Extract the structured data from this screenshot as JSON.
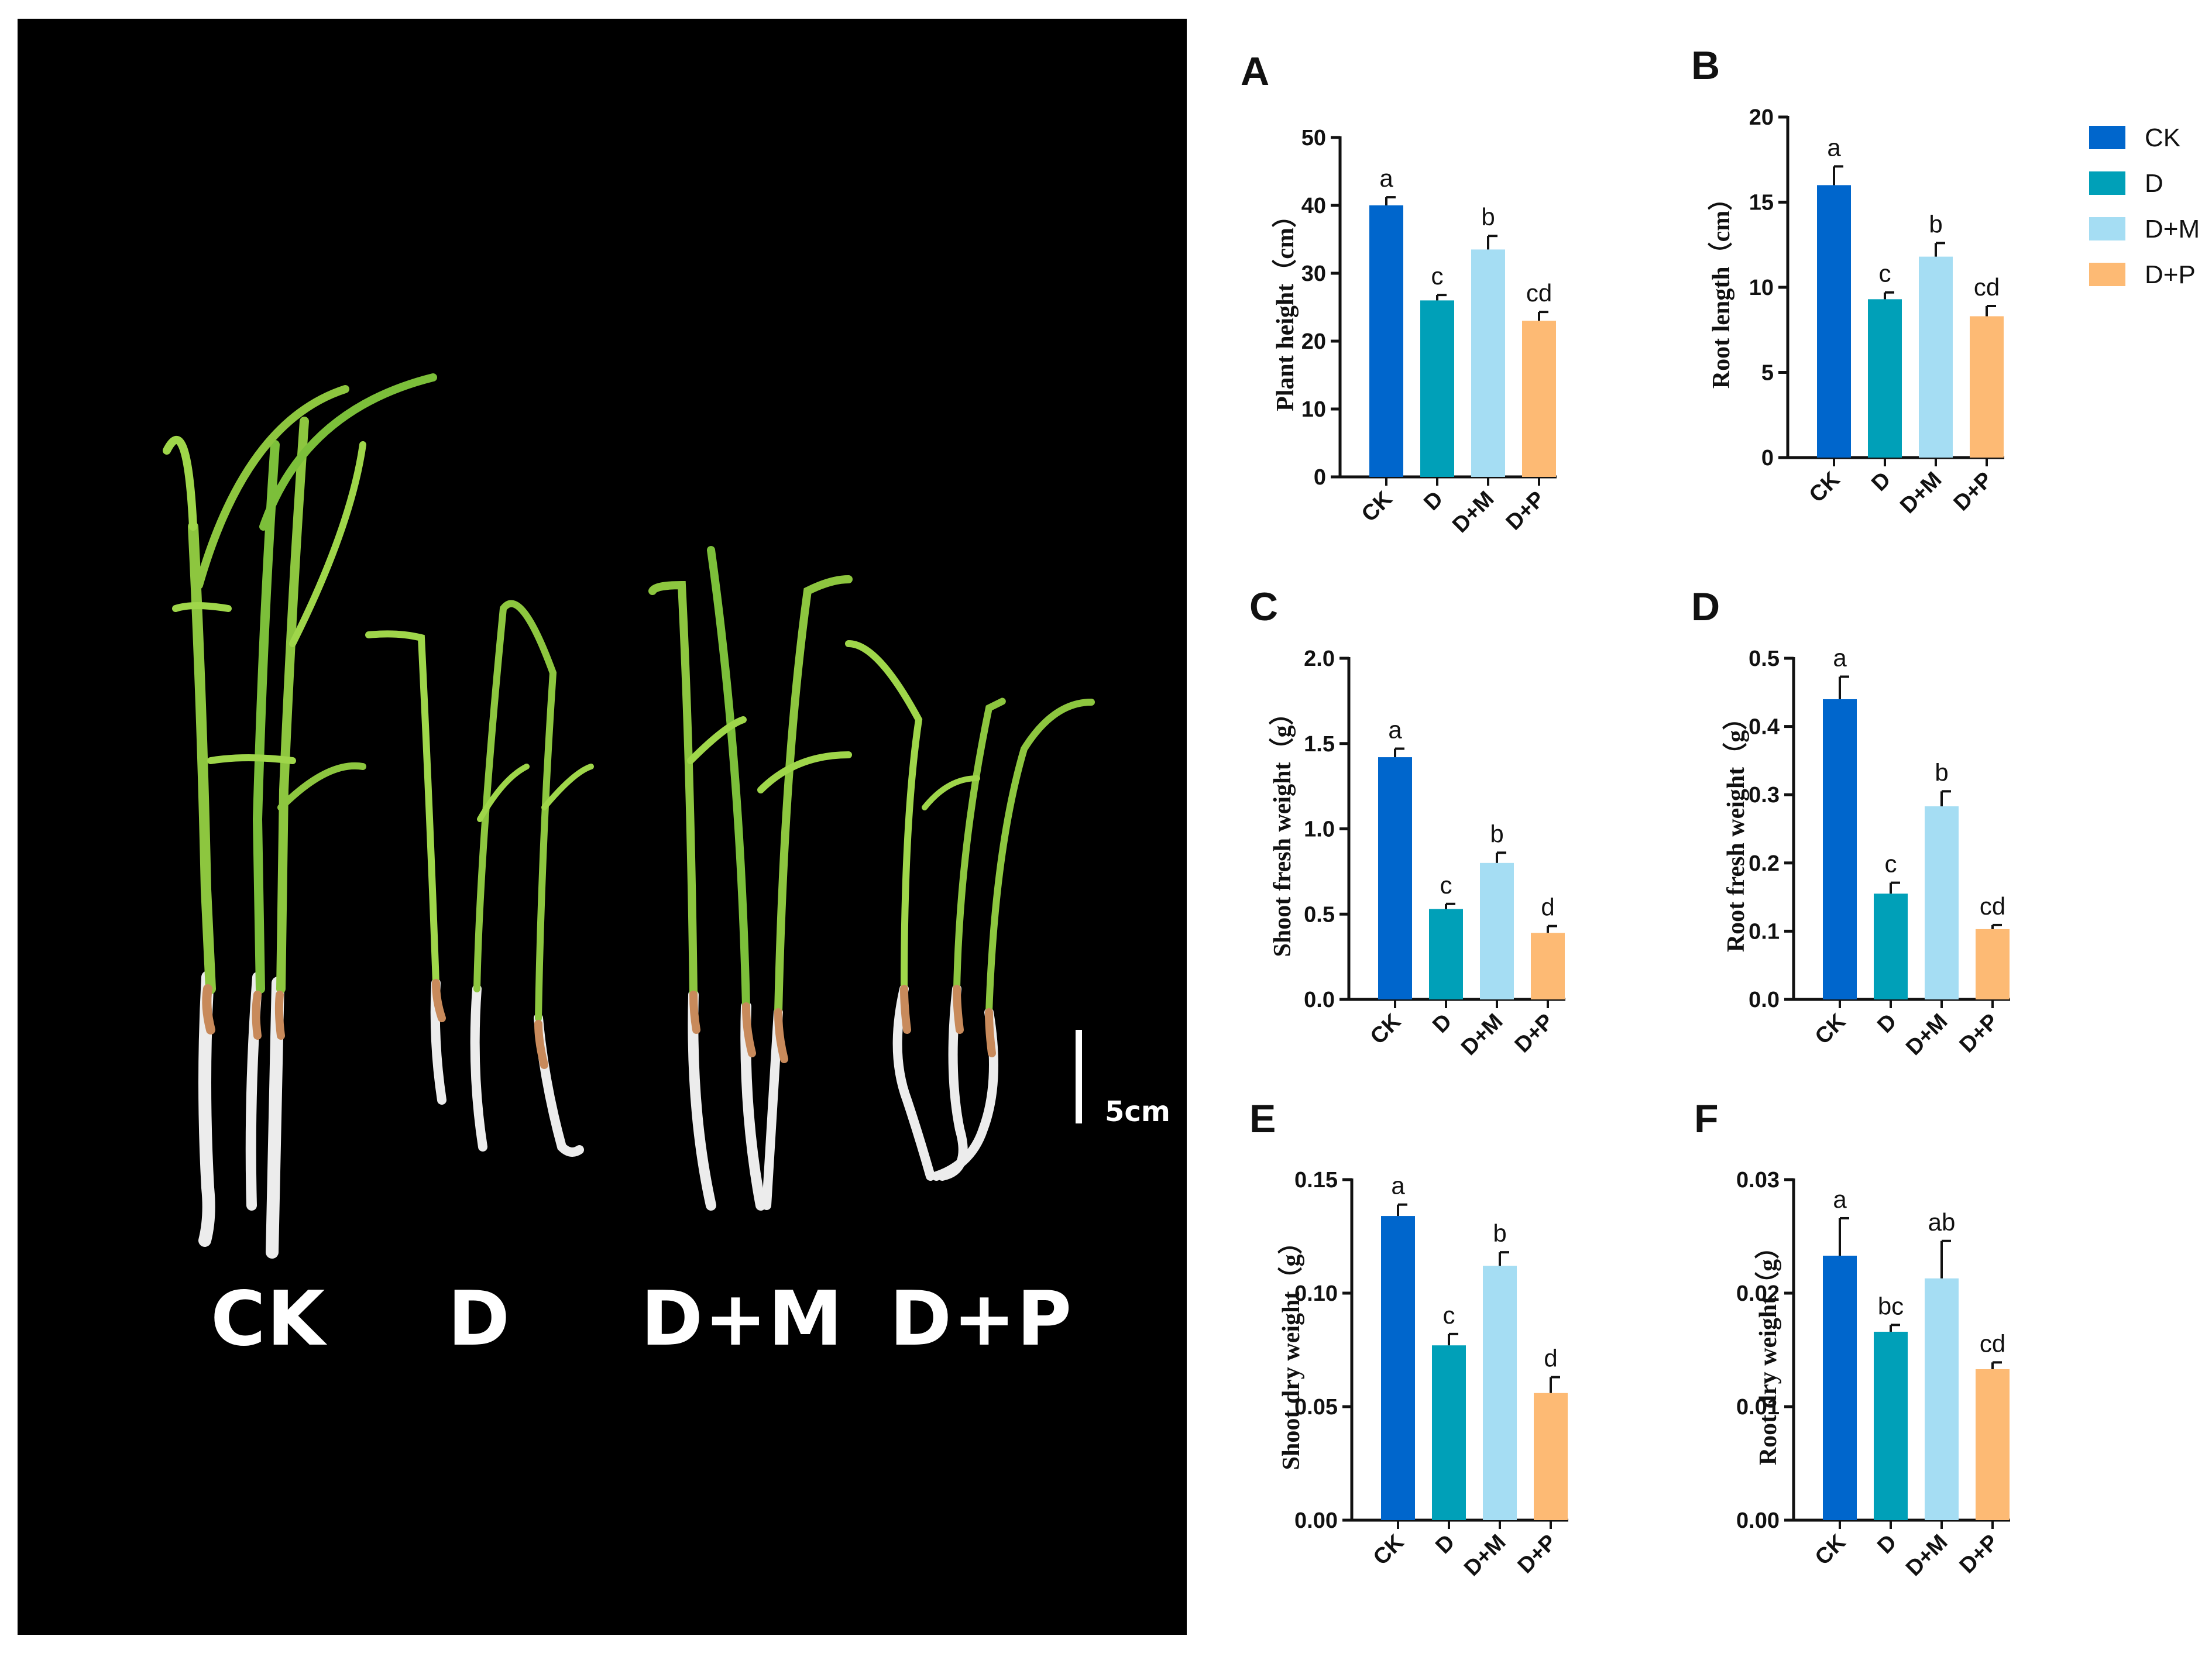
{
  "photo": {
    "group_labels": [
      "CK",
      "D",
      "D+M",
      "D+P"
    ],
    "scale_label": "5cm"
  },
  "legend": {
    "items": [
      {
        "label": "CK",
        "color": "#0066CC"
      },
      {
        "label": "D",
        "color": "#00A0B8"
      },
      {
        "label": "D+M",
        "color": "#A5DDF3"
      },
      {
        "label": "D+P",
        "color": "#FDBA74"
      }
    ]
  },
  "chart_data": [
    {
      "panel": "A",
      "type": "bar",
      "categories": [
        "CK",
        "D",
        "D+M",
        "D+P"
      ],
      "values": [
        40,
        26,
        33.5,
        23
      ],
      "errors": [
        1.2,
        0.8,
        2,
        1.3
      ],
      "significance": [
        "a",
        "c",
        "b",
        "cd"
      ],
      "ylabel": "Plant height（cm）",
      "ylim": [
        0,
        50
      ],
      "yticks": [
        0,
        10,
        20,
        30,
        40,
        50
      ],
      "ytick_labels": [
        "0",
        "10",
        "20",
        "30",
        "40",
        "50"
      ]
    },
    {
      "panel": "B",
      "type": "bar",
      "categories": [
        "CK",
        "D",
        "D+M",
        "D+P"
      ],
      "values": [
        16,
        9.3,
        11.8,
        8.3
      ],
      "errors": [
        1.1,
        0.4,
        0.8,
        0.6
      ],
      "significance": [
        "a",
        "c",
        "b",
        "cd"
      ],
      "ylabel": "Root length（cm）",
      "ylim": [
        0,
        20
      ],
      "yticks": [
        0,
        5,
        10,
        15,
        20
      ],
      "ytick_labels": [
        "0",
        "5",
        "10",
        "15",
        "20"
      ]
    },
    {
      "panel": "C",
      "type": "bar",
      "categories": [
        "CK",
        "D",
        "D+M",
        "D+P"
      ],
      "values": [
        1.42,
        0.53,
        0.8,
        0.39
      ],
      "errors": [
        0.05,
        0.03,
        0.06,
        0.04
      ],
      "significance": [
        "a",
        "c",
        "b",
        "d"
      ],
      "ylabel": "Shoot fresh weight（g）",
      "ylim": [
        0,
        2
      ],
      "yticks": [
        0,
        0.5,
        1,
        1.5,
        2
      ],
      "ytick_labels": [
        "0.0",
        "0.5",
        "1.0",
        "1.5",
        "2.0"
      ]
    },
    {
      "panel": "D",
      "type": "bar",
      "categories": [
        "CK",
        "D",
        "D+M",
        "D+P"
      ],
      "values": [
        0.44,
        0.155,
        0.283,
        0.103
      ],
      "errors": [
        0.033,
        0.016,
        0.022,
        0.006
      ],
      "significance": [
        "a",
        "c",
        "b",
        "cd"
      ],
      "ylabel": "Root fresh weight（g）",
      "ylim": [
        0,
        0.5
      ],
      "yticks": [
        0,
        0.1,
        0.2,
        0.3,
        0.4,
        0.5
      ],
      "ytick_labels": [
        "0.0",
        "0.1",
        "0.2",
        "0.3",
        "0.4",
        "0.5"
      ]
    },
    {
      "panel": "E",
      "type": "bar",
      "categories": [
        "CK",
        "D",
        "D+M",
        "D+P"
      ],
      "values": [
        0.134,
        0.077,
        0.112,
        0.056
      ],
      "errors": [
        0.005,
        0.005,
        0.006,
        0.007
      ],
      "significance": [
        "a",
        "c",
        "b",
        "d"
      ],
      "ylabel": "Shoot dry weight（g）",
      "ylim": [
        0,
        0.15
      ],
      "yticks": [
        0,
        0.05,
        0.1,
        0.15
      ],
      "ytick_labels": [
        "0.00",
        "0.05",
        "0.10",
        "0.15"
      ]
    },
    {
      "panel": "F",
      "type": "bar",
      "categories": [
        "CK",
        "D",
        "D+M",
        "D+P"
      ],
      "values": [
        0.0233,
        0.0166,
        0.0213,
        0.0133
      ],
      "errors": [
        0.0033,
        0.0006,
        0.0033,
        0.0006
      ],
      "significance": [
        "a",
        "bc",
        "ab",
        "cd"
      ],
      "ylabel": "Root dry weight（g）",
      "ylim": [
        0,
        0.03
      ],
      "yticks": [
        0,
        0.01,
        0.02,
        0.03
      ],
      "ytick_labels": [
        "0.00",
        "0.01",
        "0.02",
        "0.03"
      ]
    }
  ]
}
